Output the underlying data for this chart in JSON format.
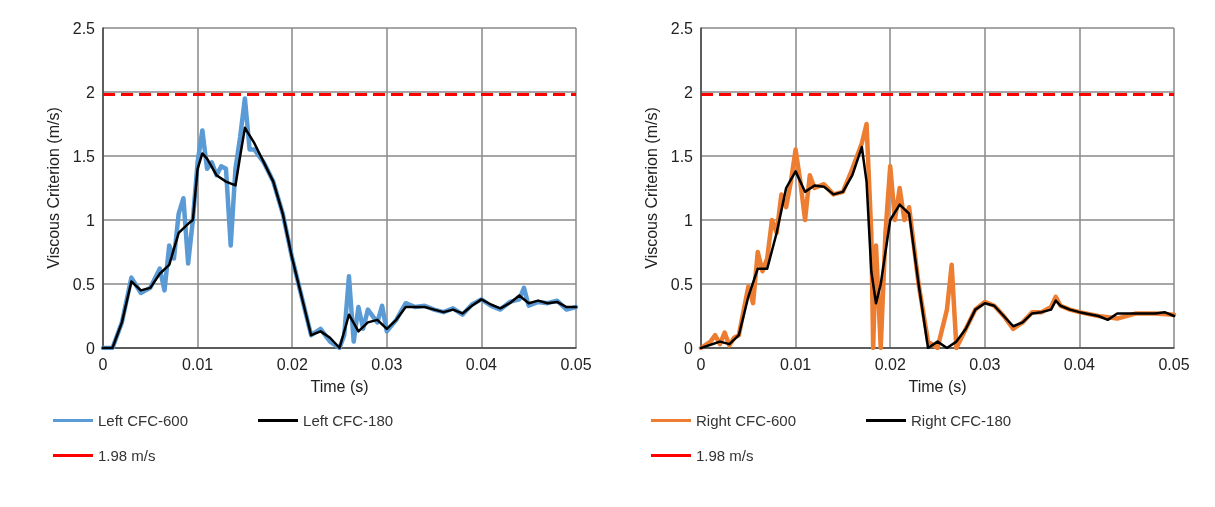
{
  "chart_data": [
    {
      "type": "line",
      "xlabel": "Time (s)",
      "ylabel": "Viscous Criterion (m/s)",
      "xlim": [
        0,
        0.05
      ],
      "xticks": [
        0,
        0.01,
        0.02,
        0.03,
        0.04,
        0.05
      ],
      "ylim": [
        0,
        2.5
      ],
      "yticks": [
        0,
        0.5,
        1,
        1.5,
        2,
        2.5
      ],
      "grid": true,
      "legend": "bottom",
      "marker": "none",
      "line_style": "solid",
      "ref_lines": [
        {
          "axis": "y",
          "value": 1.98,
          "label": "1.98 m/s",
          "color": "#ff0000",
          "line_style": "dashed"
        }
      ],
      "series": [
        {
          "name": "Left CFC-600",
          "color": "#5b9bd5",
          "x": [
            0,
            0.001,
            0.002,
            0.003,
            0.004,
            0.005,
            0.006,
            0.0065,
            0.007,
            0.0075,
            0.008,
            0.0085,
            0.009,
            0.0095,
            0.01,
            0.0105,
            0.011,
            0.0115,
            0.012,
            0.0125,
            0.013,
            0.0135,
            0.014,
            0.0145,
            0.015,
            0.0155,
            0.016,
            0.017,
            0.018,
            0.019,
            0.02,
            0.021,
            0.022,
            0.023,
            0.024,
            0.025,
            0.0255,
            0.026,
            0.0265,
            0.027,
            0.0275,
            0.028,
            0.029,
            0.0295,
            0.03,
            0.031,
            0.032,
            0.033,
            0.034,
            0.035,
            0.036,
            0.037,
            0.038,
            0.039,
            0.04,
            0.041,
            0.042,
            0.043,
            0.044,
            0.0445,
            0.045,
            0.046,
            0.047,
            0.048,
            0.049,
            0.05
          ],
          "values": [
            0,
            0,
            0.2,
            0.55,
            0.43,
            0.47,
            0.62,
            0.45,
            0.8,
            0.7,
            1.05,
            1.17,
            0.66,
            1.0,
            1.45,
            1.7,
            1.4,
            1.45,
            1.35,
            1.42,
            1.4,
            0.8,
            1.4,
            1.65,
            1.95,
            1.55,
            1.55,
            1.45,
            1.3,
            1.05,
            0.7,
            0.4,
            0.1,
            0.15,
            0.05,
            0.0,
            0.1,
            0.56,
            0.05,
            0.32,
            0.15,
            0.3,
            0.2,
            0.33,
            0.13,
            0.22,
            0.35,
            0.32,
            0.33,
            0.3,
            0.28,
            0.31,
            0.26,
            0.34,
            0.38,
            0.33,
            0.3,
            0.36,
            0.38,
            0.47,
            0.33,
            0.36,
            0.35,
            0.37,
            0.3,
            0.32
          ]
        },
        {
          "name": "Left CFC-180",
          "color": "#000000",
          "x": [
            0,
            0.001,
            0.002,
            0.003,
            0.004,
            0.005,
            0.006,
            0.007,
            0.008,
            0.009,
            0.0095,
            0.01,
            0.0105,
            0.011,
            0.012,
            0.013,
            0.014,
            0.0145,
            0.015,
            0.016,
            0.017,
            0.018,
            0.019,
            0.02,
            0.021,
            0.022,
            0.023,
            0.024,
            0.025,
            0.026,
            0.027,
            0.028,
            0.029,
            0.03,
            0.031,
            0.032,
            0.033,
            0.034,
            0.035,
            0.036,
            0.037,
            0.038,
            0.039,
            0.04,
            0.041,
            0.042,
            0.043,
            0.044,
            0.045,
            0.046,
            0.047,
            0.048,
            0.049,
            0.05
          ],
          "values": [
            0,
            0,
            0.2,
            0.52,
            0.45,
            0.47,
            0.58,
            0.65,
            0.9,
            0.97,
            1.0,
            1.4,
            1.52,
            1.48,
            1.35,
            1.3,
            1.27,
            1.5,
            1.72,
            1.6,
            1.45,
            1.3,
            1.05,
            0.7,
            0.4,
            0.1,
            0.13,
            0.08,
            0,
            0.26,
            0.13,
            0.2,
            0.22,
            0.15,
            0.22,
            0.32,
            0.32,
            0.32,
            0.3,
            0.28,
            0.3,
            0.27,
            0.33,
            0.38,
            0.34,
            0.31,
            0.35,
            0.41,
            0.35,
            0.37,
            0.35,
            0.36,
            0.32,
            0.32
          ]
        }
      ]
    },
    {
      "type": "line",
      "xlabel": "Time (s)",
      "ylabel": "Viscous Criterion (m/s)",
      "xlim": [
        0,
        0.05
      ],
      "xticks": [
        0,
        0.01,
        0.02,
        0.03,
        0.04,
        0.05
      ],
      "ylim": [
        0,
        2.5
      ],
      "yticks": [
        0,
        0.5,
        1,
        1.5,
        2,
        2.5
      ],
      "grid": true,
      "legend": "bottom",
      "marker": "none",
      "line_style": "solid",
      "ref_lines": [
        {
          "axis": "y",
          "value": 1.98,
          "label": "1.98 m/s",
          "color": "#ff0000",
          "line_style": "dashed"
        }
      ],
      "series": [
        {
          "name": "Right CFC-600",
          "color": "#ed7d31",
          "x": [
            0,
            0.001,
            0.0015,
            0.002,
            0.0025,
            0.003,
            0.0035,
            0.004,
            0.005,
            0.0055,
            0.006,
            0.0065,
            0.007,
            0.0075,
            0.008,
            0.0085,
            0.009,
            0.0095,
            0.01,
            0.0105,
            0.011,
            0.0115,
            0.012,
            0.013,
            0.014,
            0.015,
            0.016,
            0.017,
            0.0175,
            0.018,
            0.0182,
            0.0185,
            0.019,
            0.0195,
            0.02,
            0.0205,
            0.021,
            0.0215,
            0.022,
            0.023,
            0.024,
            0.025,
            0.026,
            0.0265,
            0.027,
            0.028,
            0.029,
            0.03,
            0.031,
            0.032,
            0.033,
            0.034,
            0.035,
            0.036,
            0.037,
            0.0375,
            0.038,
            0.039,
            0.04,
            0.042,
            0.044,
            0.046,
            0.048,
            0.05
          ],
          "values": [
            0,
            0.05,
            0.1,
            0.03,
            0.12,
            0.02,
            0.08,
            0.1,
            0.48,
            0.35,
            0.75,
            0.6,
            0.7,
            1.0,
            0.9,
            1.2,
            1.1,
            1.3,
            1.55,
            1.3,
            1.0,
            1.35,
            1.25,
            1.28,
            1.2,
            1.22,
            1.4,
            1.6,
            1.75,
            0.9,
            0,
            0.8,
            0,
            0.9,
            1.42,
            1.0,
            1.25,
            1.0,
            1.1,
            0.5,
            0.05,
            0.0,
            0.3,
            0.65,
            0.0,
            0.15,
            0.3,
            0.36,
            0.33,
            0.25,
            0.15,
            0.2,
            0.28,
            0.28,
            0.32,
            0.4,
            0.33,
            0.3,
            0.28,
            0.25,
            0.23,
            0.27,
            0.27,
            0.26
          ]
        },
        {
          "name": "Right CFC-180",
          "color": "#000000",
          "x": [
            0,
            0.002,
            0.003,
            0.004,
            0.005,
            0.006,
            0.007,
            0.008,
            0.009,
            0.01,
            0.011,
            0.012,
            0.013,
            0.014,
            0.015,
            0.016,
            0.017,
            0.0175,
            0.018,
            0.0185,
            0.019,
            0.02,
            0.021,
            0.022,
            0.023,
            0.024,
            0.025,
            0.026,
            0.027,
            0.028,
            0.029,
            0.03,
            0.031,
            0.032,
            0.033,
            0.034,
            0.035,
            0.036,
            0.037,
            0.0375,
            0.038,
            0.039,
            0.04,
            0.042,
            0.043,
            0.044,
            0.046,
            0.048,
            0.049,
            0.05
          ],
          "values": [
            0,
            0.05,
            0.03,
            0.1,
            0.4,
            0.62,
            0.62,
            0.9,
            1.25,
            1.38,
            1.22,
            1.27,
            1.26,
            1.2,
            1.22,
            1.35,
            1.57,
            1.3,
            0.6,
            0.35,
            0.5,
            1.0,
            1.12,
            1.05,
            0.5,
            0,
            0.05,
            0,
            0.05,
            0.15,
            0.3,
            0.35,
            0.33,
            0.25,
            0.17,
            0.2,
            0.27,
            0.28,
            0.3,
            0.37,
            0.33,
            0.3,
            0.28,
            0.25,
            0.22,
            0.27,
            0.27,
            0.27,
            0.28,
            0.25
          ]
        }
      ]
    }
  ]
}
